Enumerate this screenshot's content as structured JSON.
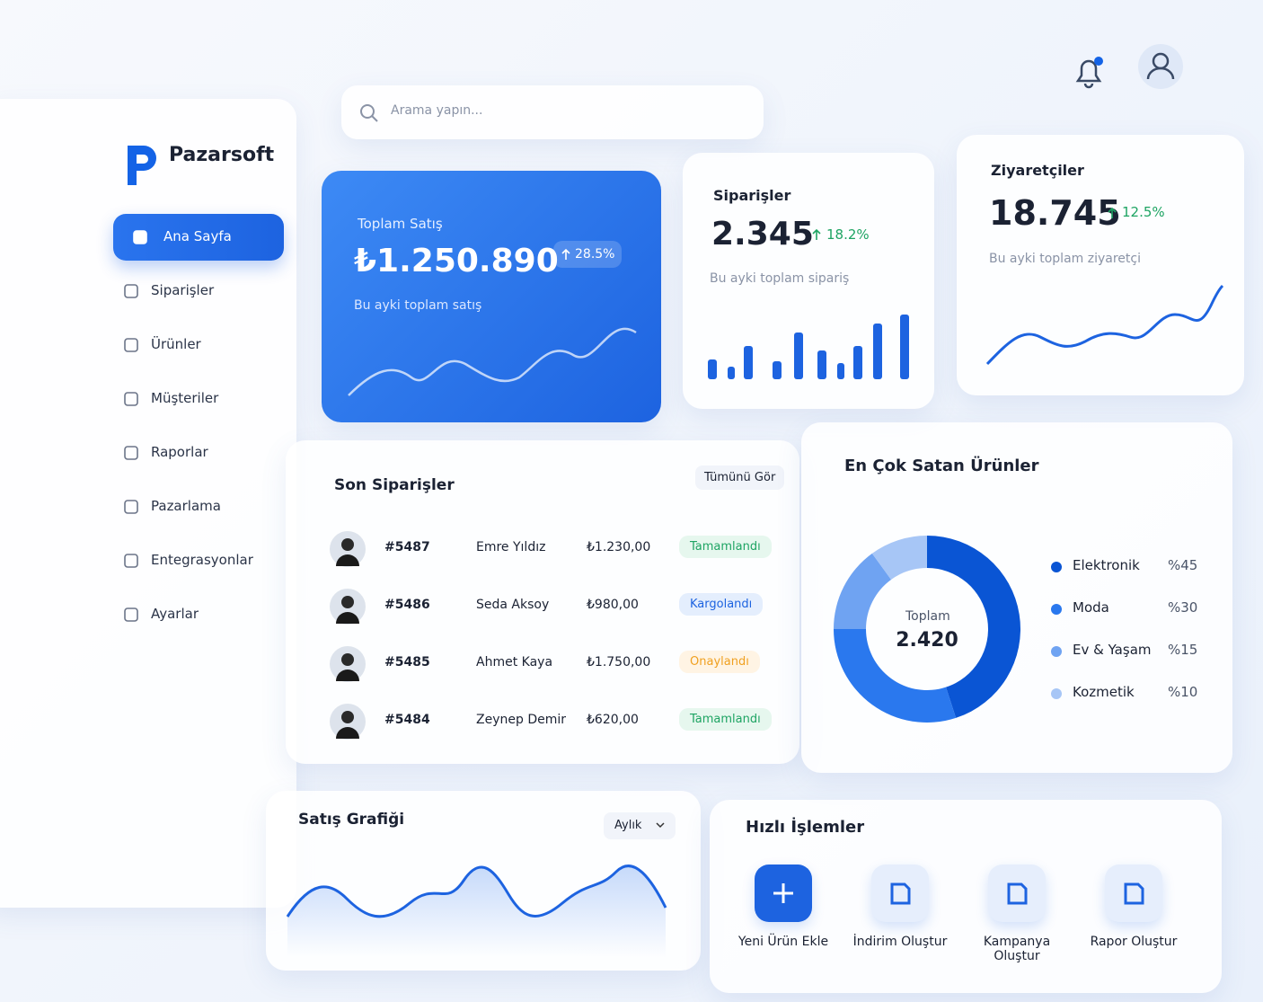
{
  "sidebar": {
    "brand": "Pazarsoft",
    "menu": [
      "Ana Sayfa",
      "Siparişler",
      "Ürünler",
      "Müşteriler",
      "Raporlar",
      "Pazarlama",
      "Entegrasyonlar",
      "Ayarlar"
    ]
  },
  "search": {
    "placeholder": "Arama yapın..."
  },
  "cards": [
    {
      "title": "Toplam Satış",
      "value": "₺1.250.890",
      "change": "28.5%",
      "subtitle": "Bu ayki toplam satış"
    },
    {
      "title": "Siparişler",
      "value": "2.345",
      "change": "18.2%",
      "subtitle": "Bu ayki toplam sipariş"
    },
    {
      "title": "Ziyaretçiler",
      "value": "18.745",
      "change": "12.5%",
      "subtitle": "Bu ayki toplam ziyaretçi"
    }
  ],
  "orders": {
    "title": "Son Siparişler",
    "action": "Tümünü Gör",
    "rows": [
      [
        "#5487",
        "Emre Yıldız",
        "₺1.230,00",
        "Tamamlandı"
      ],
      [
        "#5486",
        "Seda Aksoy",
        "₺980,00",
        "Kargolandı"
      ],
      [
        "#5485",
        "Ahmet Kaya",
        "₺1.750,00",
        "Onaylandı"
      ],
      [
        "#5484",
        "Zeynep Demir",
        "₺620,00",
        "Tamamlandı"
      ]
    ]
  },
  "top_products": {
    "title": "En Çok Satan Ürünler",
    "center_label": "Toplam",
    "center_value": "2.420",
    "items": [
      {
        "name": "Elektronik",
        "label": "%45",
        "value": 45,
        "color": "#0a55d4"
      },
      {
        "name": "Moda",
        "label": "%30",
        "value": 30,
        "color": "#2a78ee"
      },
      {
        "name": "Ev & Yaşam",
        "label": "%15",
        "value": 15,
        "color": "#6fa3f2"
      },
      {
        "name": "Kozmetik",
        "label": "%10",
        "value": 10,
        "color": "#a7c6f6"
      }
    ]
  },
  "sales_chart": {
    "title": "Satış Grafiği",
    "period": "Aylık"
  },
  "quick_actions": {
    "title": "Hızlı İşlemler",
    "items": [
      "Yeni Ürün Ekle",
      "İndirim Oluştur",
      "Kampanya Oluştur",
      "Rapor Oluştur"
    ]
  }
}
